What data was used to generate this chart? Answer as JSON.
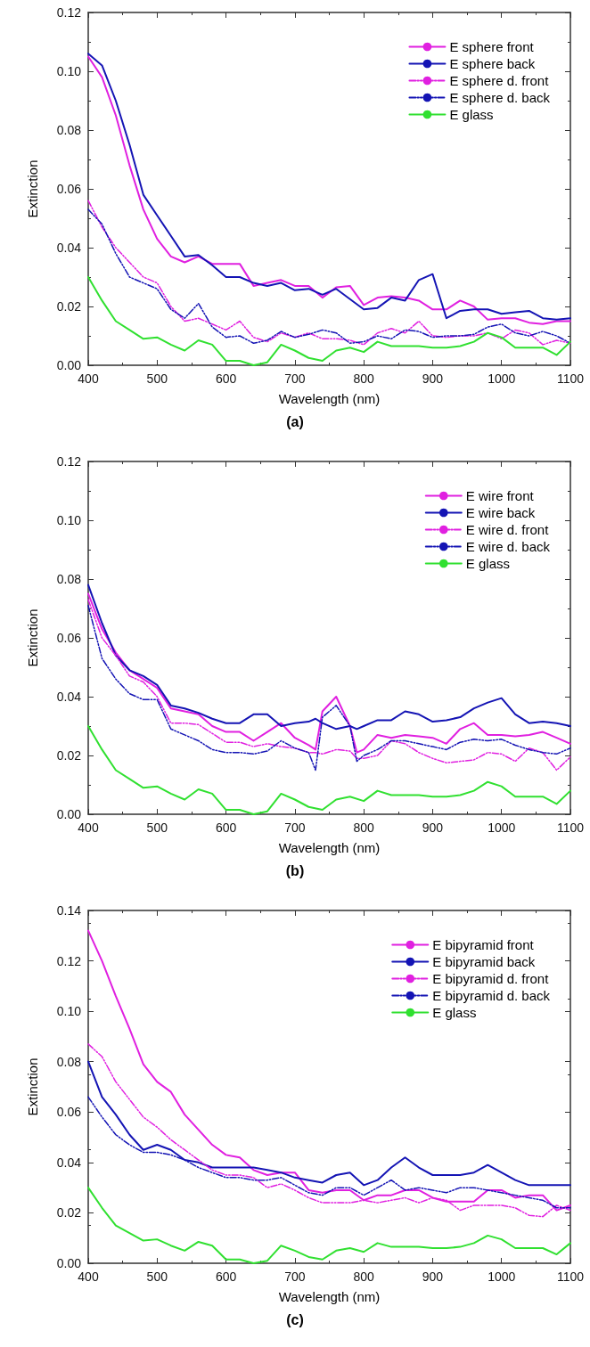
{
  "chart_data": [
    {
      "type": "line",
      "title": "(a)",
      "xlabel": "Wavelength (nm)",
      "ylabel": "Extinction",
      "legend": "top right",
      "marker": "none",
      "x": [
        400,
        420,
        440,
        460,
        480,
        500,
        520,
        540,
        560,
        580,
        600,
        620,
        640,
        660,
        680,
        700,
        720,
        740,
        760,
        780,
        800,
        820,
        840,
        860,
        880,
        900,
        920,
        940,
        960,
        980,
        1000,
        1020,
        1040,
        1060,
        1080,
        1100
      ],
      "xlim": [
        400,
        1100
      ],
      "xticks": [
        400,
        500,
        600,
        700,
        800,
        900,
        1000,
        1100
      ],
      "ylim": [
        0,
        0.12
      ],
      "yticks": [
        {
          "value": 0,
          "label": "0.00"
        },
        {
          "value": 0.02,
          "label": "0.02"
        },
        {
          "value": 0.04,
          "label": "0.04"
        },
        {
          "value": 0.06,
          "label": "0.06"
        },
        {
          "value": 0.08,
          "label": "0.08"
        },
        {
          "value": 0.1,
          "label": "0.10"
        },
        {
          "value": 0.12,
          "label": "0.12"
        }
      ],
      "series": [
        {
          "name": "E sphere front",
          "color": "#e020e0",
          "line_style": "solid",
          "values": [
            0.105,
            0.098,
            0.085,
            0.068,
            0.053,
            0.043,
            0.037,
            0.035,
            0.037,
            0.0345,
            0.0345,
            0.0345,
            0.027,
            0.028,
            0.029,
            0.027,
            0.027,
            0.023,
            0.0265,
            0.027,
            0.0205,
            0.023,
            0.0235,
            0.023,
            0.022,
            0.019,
            0.019,
            0.022,
            0.02,
            0.0155,
            0.016,
            0.016,
            0.0145,
            0.014,
            0.015,
            0.015
          ]
        },
        {
          "name": "E sphere back",
          "color": "#1414b4",
          "line_style": "solid",
          "values": [
            0.106,
            0.102,
            0.09,
            0.075,
            0.058,
            0.051,
            0.044,
            0.037,
            0.0375,
            0.034,
            0.03,
            0.03,
            0.028,
            0.027,
            0.028,
            0.0255,
            0.026,
            0.024,
            0.026,
            0.0225,
            0.019,
            0.0195,
            0.023,
            0.022,
            0.029,
            0.031,
            0.016,
            0.0185,
            0.019,
            0.019,
            0.0175,
            0.018,
            0.0185,
            0.016,
            0.0155,
            0.016
          ]
        },
        {
          "name": "E sphere d. front",
          "color": "#e020e0",
          "line_style": "dashed",
          "values": [
            0.056,
            0.047,
            0.04,
            0.035,
            0.03,
            0.028,
            0.02,
            0.015,
            0.016,
            0.014,
            0.012,
            0.015,
            0.0095,
            0.008,
            0.011,
            0.0095,
            0.011,
            0.009,
            0.009,
            0.0085,
            0.007,
            0.011,
            0.0125,
            0.011,
            0.015,
            0.01,
            0.0095,
            0.01,
            0.01,
            0.011,
            0.009,
            0.012,
            0.011,
            0.007,
            0.0085,
            0.0075
          ]
        },
        {
          "name": "E sphere d. back",
          "color": "#1414b4",
          "line_style": "dashed",
          "values": [
            0.053,
            0.048,
            0.038,
            0.03,
            0.028,
            0.026,
            0.019,
            0.016,
            0.021,
            0.013,
            0.0095,
            0.01,
            0.0075,
            0.0085,
            0.0115,
            0.0095,
            0.0105,
            0.012,
            0.011,
            0.0075,
            0.008,
            0.01,
            0.009,
            0.012,
            0.0115,
            0.0095,
            0.01,
            0.01,
            0.0105,
            0.013,
            0.014,
            0.011,
            0.01,
            0.0115,
            0.01,
            0.0075
          ]
        },
        {
          "name": "E glass",
          "color": "#30e030",
          "line_style": "solid",
          "values": [
            0.03,
            0.022,
            0.015,
            0.012,
            0.009,
            0.0095,
            0.007,
            0.005,
            0.0085,
            0.007,
            0.0015,
            0.0015,
            0,
            0.001,
            0.007,
            0.005,
            0.0025,
            0.0015,
            0.005,
            0.006,
            0.0045,
            0.008,
            0.0065,
            0.0065,
            0.0065,
            0.006,
            0.006,
            0.0065,
            0.008,
            0.011,
            0.0095,
            0.006,
            0.006,
            0.006,
            0.0035,
            0.008
          ]
        }
      ]
    },
    {
      "type": "line",
      "title": "(b)",
      "xlabel": "Wavelength (nm)",
      "ylabel": "Extinction",
      "legend": "top right",
      "marker": "none",
      "x": [
        400,
        420,
        440,
        460,
        480,
        500,
        520,
        540,
        560,
        580,
        600,
        620,
        640,
        660,
        680,
        700,
        720,
        730,
        740,
        760,
        780,
        790,
        800,
        820,
        840,
        860,
        880,
        900,
        920,
        940,
        960,
        980,
        1000,
        1020,
        1040,
        1060,
        1080,
        1100
      ],
      "xlim": [
        400,
        1100
      ],
      "xticks": [
        400,
        500,
        600,
        700,
        800,
        900,
        1000,
        1100
      ],
      "ylim": [
        0,
        0.12
      ],
      "yticks": [
        {
          "value": 0,
          "label": "0.00"
        },
        {
          "value": 0.02,
          "label": "0.02"
        },
        {
          "value": 0.04,
          "label": "0.04"
        },
        {
          "value": 0.06,
          "label": "0.06"
        },
        {
          "value": 0.08,
          "label": "0.08"
        },
        {
          "value": 0.1,
          "label": "0.10"
        },
        {
          "value": 0.12,
          "label": "0.12"
        }
      ],
      "series": [
        {
          "name": "E wire front",
          "color": "#e020e0",
          "line_style": "solid",
          "values": [
            0.075,
            0.063,
            0.055,
            0.049,
            0.046,
            0.043,
            0.036,
            0.035,
            0.034,
            0.03,
            0.028,
            0.028,
            0.025,
            0.028,
            0.031,
            0.026,
            0.0235,
            0.022,
            0.035,
            0.04,
            0.03,
            0.021,
            0.022,
            0.027,
            0.026,
            0.027,
            0.0265,
            0.026,
            0.024,
            0.029,
            0.031,
            0.027,
            0.027,
            0.0265,
            0.027,
            0.028,
            0.026,
            0.024
          ]
        },
        {
          "name": "E wire back",
          "color": "#1414b4",
          "line_style": "solid",
          "values": [
            0.078,
            0.065,
            0.054,
            0.049,
            0.047,
            0.044,
            0.037,
            0.036,
            0.0345,
            0.0325,
            0.031,
            0.031,
            0.034,
            0.034,
            0.03,
            0.031,
            0.0315,
            0.0325,
            0.031,
            0.029,
            0.03,
            0.029,
            0.03,
            0.032,
            0.032,
            0.035,
            0.034,
            0.0315,
            0.032,
            0.033,
            0.036,
            0.038,
            0.0395,
            0.034,
            0.031,
            0.0315,
            0.031,
            0.03
          ]
        },
        {
          "name": "E wire d. front",
          "color": "#e020e0",
          "line_style": "dashed",
          "values": [
            0.073,
            0.06,
            0.054,
            0.047,
            0.045,
            0.04,
            0.031,
            0.031,
            0.0305,
            0.0275,
            0.0245,
            0.0245,
            0.023,
            0.024,
            0.023,
            0.0225,
            0.021,
            0.021,
            0.0205,
            0.022,
            0.0215,
            0.019,
            0.019,
            0.02,
            0.025,
            0.024,
            0.021,
            0.019,
            0.0175,
            0.018,
            0.0185,
            0.021,
            0.0205,
            0.018,
            0.0225,
            0.021,
            0.015,
            0.0195
          ]
        },
        {
          "name": "E wire d. back",
          "color": "#1414b4",
          "line_style": "dashed",
          "values": [
            0.071,
            0.053,
            0.046,
            0.041,
            0.039,
            0.039,
            0.029,
            0.027,
            0.025,
            0.022,
            0.021,
            0.021,
            0.0205,
            0.0215,
            0.025,
            0.0225,
            0.021,
            0.015,
            0.033,
            0.037,
            0.03,
            0.018,
            0.02,
            0.022,
            0.025,
            0.025,
            0.024,
            0.023,
            0.022,
            0.0245,
            0.0255,
            0.025,
            0.0255,
            0.0235,
            0.022,
            0.021,
            0.0205,
            0.0225
          ]
        },
        {
          "name": "E glass",
          "color": "#30e030",
          "line_style": "solid",
          "x": [
            400,
            420,
            440,
            460,
            480,
            500,
            520,
            540,
            560,
            580,
            600,
            620,
            640,
            660,
            680,
            700,
            720,
            740,
            760,
            780,
            800,
            820,
            840,
            860,
            880,
            900,
            920,
            940,
            960,
            980,
            1000,
            1020,
            1040,
            1060,
            1080,
            1100
          ],
          "values": [
            0.03,
            0.022,
            0.015,
            0.012,
            0.009,
            0.0095,
            0.007,
            0.005,
            0.0085,
            0.007,
            0.0015,
            0.0015,
            0,
            0.001,
            0.007,
            0.005,
            0.0025,
            0.0015,
            0.005,
            0.006,
            0.0045,
            0.008,
            0.0065,
            0.0065,
            0.0065,
            0.006,
            0.006,
            0.0065,
            0.008,
            0.011,
            0.0095,
            0.006,
            0.006,
            0.006,
            0.0035,
            0.008
          ]
        }
      ]
    },
    {
      "type": "line",
      "title": "(c)",
      "xlabel": "Wavelength (nm)",
      "ylabel": "Extinction",
      "legend": "top right",
      "marker": "none",
      "x": [
        400,
        420,
        440,
        460,
        480,
        500,
        520,
        540,
        560,
        580,
        600,
        620,
        640,
        660,
        680,
        700,
        720,
        740,
        760,
        780,
        800,
        820,
        840,
        860,
        880,
        900,
        920,
        940,
        960,
        980,
        1000,
        1020,
        1040,
        1060,
        1080,
        1100
      ],
      "xlim": [
        400,
        1100
      ],
      "xticks": [
        400,
        500,
        600,
        700,
        800,
        900,
        1000,
        1100
      ],
      "ylim": [
        0,
        0.14
      ],
      "yticks": [
        {
          "value": 0,
          "label": "0.00"
        },
        {
          "value": 0.02,
          "label": "0.02"
        },
        {
          "value": 0.04,
          "label": "0.04"
        },
        {
          "value": 0.06,
          "label": "0.06"
        },
        {
          "value": 0.08,
          "label": "0.08"
        },
        {
          "value": 0.1,
          "label": "0.10"
        },
        {
          "value": 0.12,
          "label": "0.12"
        },
        {
          "value": 0.14,
          "label": "0.14"
        }
      ],
      "series": [
        {
          "name": "E bipyramid front",
          "color": "#e020e0",
          "line_style": "solid",
          "values": [
            0.132,
            0.12,
            0.106,
            0.093,
            0.079,
            0.072,
            0.068,
            0.059,
            0.053,
            0.047,
            0.043,
            0.042,
            0.037,
            0.035,
            0.036,
            0.036,
            0.029,
            0.028,
            0.029,
            0.029,
            0.025,
            0.027,
            0.027,
            0.029,
            0.029,
            0.026,
            0.0245,
            0.0245,
            0.0245,
            0.029,
            0.029,
            0.026,
            0.027,
            0.027,
            0.021,
            0.023
          ]
        },
        {
          "name": "E bipyramid back",
          "color": "#1414b4",
          "line_style": "solid",
          "values": [
            0.08,
            0.066,
            0.059,
            0.051,
            0.045,
            0.047,
            0.045,
            0.041,
            0.04,
            0.038,
            0.038,
            0.038,
            0.038,
            0.037,
            0.036,
            0.034,
            0.033,
            0.032,
            0.035,
            0.036,
            0.031,
            0.033,
            0.038,
            0.042,
            0.038,
            0.035,
            0.035,
            0.035,
            0.036,
            0.039,
            0.036,
            0.033,
            0.031,
            0.031,
            0.031,
            0.031
          ]
        },
        {
          "name": "E bipyramid d. front",
          "color": "#e020e0",
          "line_style": "dashed",
          "values": [
            0.087,
            0.082,
            0.072,
            0.065,
            0.058,
            0.054,
            0.049,
            0.045,
            0.041,
            0.037,
            0.035,
            0.035,
            0.034,
            0.03,
            0.0315,
            0.029,
            0.026,
            0.024,
            0.024,
            0.024,
            0.025,
            0.024,
            0.025,
            0.026,
            0.024,
            0.026,
            0.025,
            0.021,
            0.023,
            0.023,
            0.023,
            0.022,
            0.019,
            0.0185,
            0.023,
            0.021
          ]
        },
        {
          "name": "E bipyramid d. back",
          "color": "#1414b4",
          "line_style": "dashed",
          "values": [
            0.066,
            0.058,
            0.051,
            0.047,
            0.044,
            0.044,
            0.043,
            0.041,
            0.038,
            0.036,
            0.034,
            0.034,
            0.033,
            0.033,
            0.034,
            0.031,
            0.028,
            0.027,
            0.03,
            0.03,
            0.027,
            0.03,
            0.033,
            0.029,
            0.03,
            0.029,
            0.028,
            0.03,
            0.03,
            0.029,
            0.028,
            0.027,
            0.026,
            0.025,
            0.022,
            0.022
          ]
        },
        {
          "name": "E glass",
          "color": "#30e030",
          "line_style": "solid",
          "values": [
            0.03,
            0.022,
            0.015,
            0.012,
            0.009,
            0.0095,
            0.007,
            0.005,
            0.0085,
            0.007,
            0.0015,
            0.0015,
            0,
            0.001,
            0.007,
            0.005,
            0.0025,
            0.0015,
            0.005,
            0.006,
            0.0045,
            0.008,
            0.0065,
            0.0065,
            0.0065,
            0.006,
            0.006,
            0.0065,
            0.008,
            0.011,
            0.0095,
            0.006,
            0.006,
            0.006,
            0.0035,
            0.008
          ]
        }
      ]
    }
  ]
}
